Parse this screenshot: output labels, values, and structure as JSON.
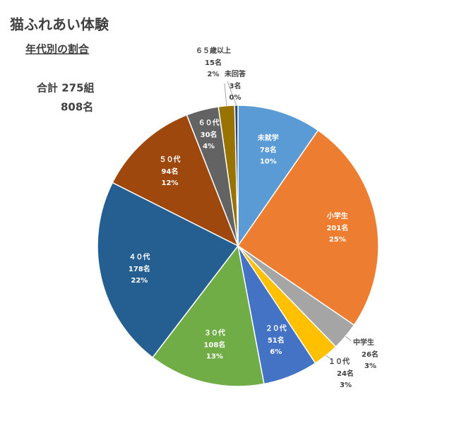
{
  "chart_data": {
    "type": "pie",
    "title": "猫ふれあい体験",
    "subtitle": "年代別の割合",
    "total_groups": "合計 275組",
    "total_people": "808名",
    "categories": [
      "未就学",
      "小学生",
      "中学生",
      "１０代",
      "２０代",
      "３０代",
      "４０代",
      "５０代",
      "６０代",
      "６５歳以上",
      "未回答"
    ],
    "values": [
      78,
      201,
      26,
      24,
      51,
      108,
      178,
      94,
      30,
      15,
      3
    ],
    "value_labels": [
      "78名",
      "201名",
      "26名",
      "24名",
      "51名",
      "108名",
      "178名",
      "94名",
      "30名",
      "15名",
      "3名"
    ],
    "percent_labels": [
      "10%",
      "25%",
      "3%",
      "3%",
      "6%",
      "13%",
      "22%",
      "12%",
      "4%",
      "2%",
      "0%"
    ],
    "colors": [
      "#5b9bd5",
      "#ed7d31",
      "#a5a5a5",
      "#ffc000",
      "#4472c4",
      "#70ad47",
      "#255e91",
      "#9e480e",
      "#636363",
      "#997300",
      "#264478"
    ]
  }
}
